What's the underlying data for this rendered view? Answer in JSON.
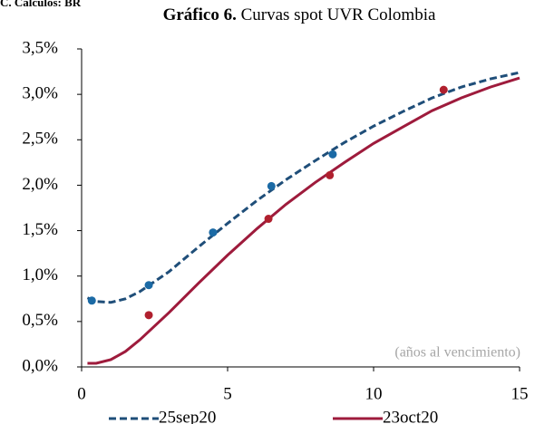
{
  "chart_data": {
    "type": "line",
    "source": "C. Cálculos: BR",
    "title": [
      "Gráfico 6.",
      "Curvas spot UVR Colombia"
    ],
    "annotation": "(años al vencimiento)",
    "xlim": [
      0,
      15
    ],
    "xticks": [
      0,
      5,
      10,
      15
    ],
    "ylim": [
      0,
      3.5
    ],
    "yticks": [
      {
        "value": 0,
        "label": "0,0%"
      },
      {
        "value": 0.5,
        "label": "0,5%"
      },
      {
        "value": 1,
        "label": "1,0%"
      },
      {
        "value": 1.5,
        "label": "1,5%"
      },
      {
        "value": 2,
        "label": "2,0%"
      },
      {
        "value": 2.5,
        "label": "2,5%"
      },
      {
        "value": 3,
        "label": "3,0%"
      },
      {
        "value": 3.5,
        "label": "3,5%"
      }
    ],
    "legend": "bottom",
    "series": [
      {
        "name": "25sep20",
        "color": "#1f4e79",
        "dash": true,
        "x": [
          0.2,
          0.5,
          1,
          1.5,
          2,
          3,
          4,
          5,
          6,
          7,
          8,
          9,
          10,
          11,
          12,
          13,
          14,
          15
        ],
        "values": [
          0.76,
          0.72,
          0.71,
          0.75,
          0.83,
          1.05,
          1.32,
          1.58,
          1.83,
          2.06,
          2.27,
          2.47,
          2.65,
          2.81,
          2.96,
          3.08,
          3.17,
          3.24
        ],
        "markers": {
          "color": "#1b6aa5",
          "x": [
            0.35,
            2.3,
            4.5,
            6.5,
            8.6
          ],
          "values": [
            0.73,
            0.9,
            1.48,
            1.99,
            2.34
          ]
        }
      },
      {
        "name": "23oct20",
        "color": "#9e1b3c",
        "dash": false,
        "x": [
          0.2,
          0.5,
          1,
          1.5,
          2,
          3,
          4,
          5,
          6,
          7,
          8,
          9,
          10,
          11,
          12,
          13,
          14,
          15
        ],
        "values": [
          0.04,
          0.04,
          0.08,
          0.17,
          0.3,
          0.6,
          0.92,
          1.23,
          1.52,
          1.79,
          2.03,
          2.25,
          2.46,
          2.64,
          2.82,
          2.96,
          3.08,
          3.18
        ],
        "markers": {
          "color": "#b0202e",
          "x": [
            2.3,
            6.4,
            8.5,
            12.4
          ],
          "values": [
            0.57,
            1.63,
            2.11,
            3.05
          ]
        }
      }
    ]
  }
}
